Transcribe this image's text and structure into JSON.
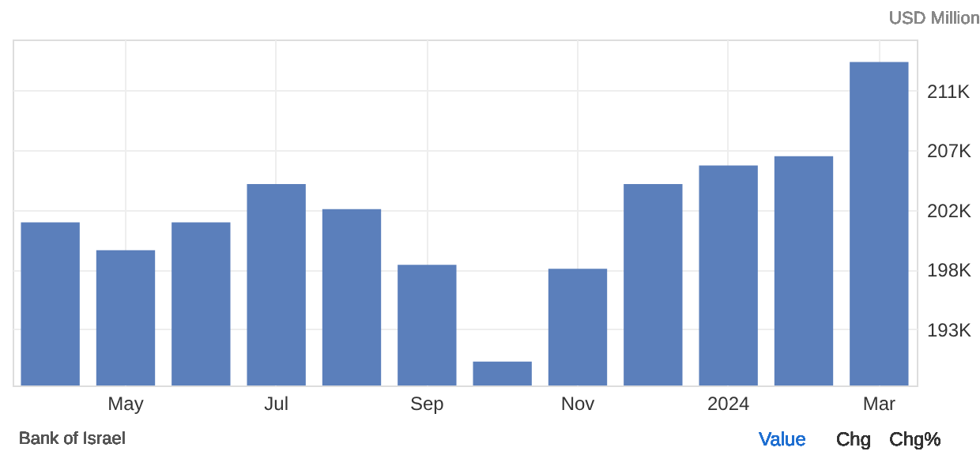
{
  "chart_data": {
    "type": "bar",
    "ylabel": "USD Million",
    "categories": [
      null,
      "May",
      null,
      "Jul",
      null,
      "Sep",
      null,
      "Nov",
      null,
      "2024",
      null,
      "Mar"
    ],
    "values": [
      201300,
      199200,
      201300,
      204200,
      202300,
      198100,
      190800,
      197800,
      204200,
      205600,
      206300,
      213400
    ],
    "color": "#5b7fbb",
    "ylim": [
      189000,
      215100
    ],
    "yticks": [
      {
        "value": 193250,
        "label": "193K"
      },
      {
        "value": 197750,
        "label": "198K"
      },
      {
        "value": 202250,
        "label": "202K"
      },
      {
        "value": 206750,
        "label": "207K"
      },
      {
        "value": 211250,
        "label": "211K"
      }
    ],
    "grid": true,
    "annotations": [
      "Bank of Israel",
      "Value",
      "Chg",
      "Chg%"
    ]
  }
}
